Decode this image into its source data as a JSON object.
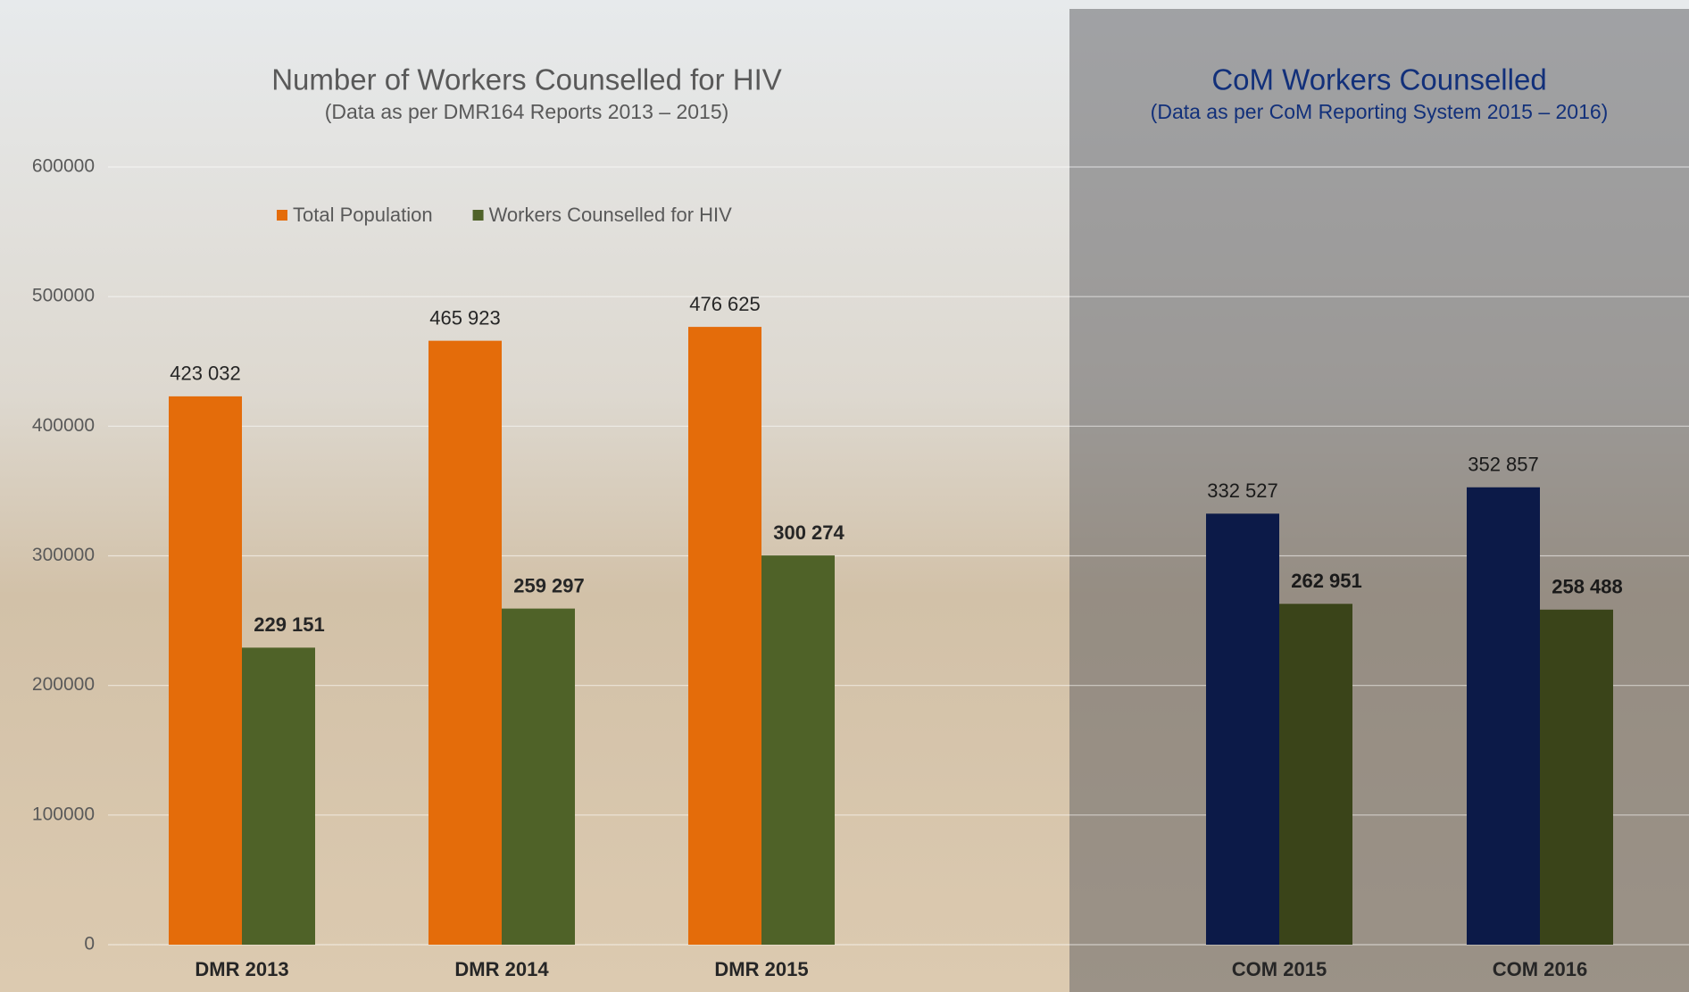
{
  "chart_data": [
    {
      "type": "bar",
      "title": "Number of Workers Counselled  for HIV",
      "subtitle": "(Data as per DMR164  Reports 2013 – 2015)",
      "categories": [
        "DMR 2013",
        "DMR 2014",
        "DMR 2015"
      ],
      "series": [
        {
          "name": "Total Population",
          "color": "#e46c0a",
          "values": [
            423032,
            465923,
            476625
          ],
          "value_labels": [
            "423 032",
            "465 923",
            "476 625"
          ]
        },
        {
          "name": "Workers Counselled for HIV",
          "color": "#4f6228",
          "values": [
            229151,
            259297,
            300274
          ],
          "value_labels": [
            "229 151",
            "259 297",
            "300 274"
          ]
        }
      ],
      "ylim": [
        0,
        600000
      ],
      "yticks": [
        0,
        100000,
        200000,
        300000,
        400000,
        500000,
        600000
      ],
      "grid": true,
      "legend": "top"
    },
    {
      "type": "bar",
      "title": "CoM Workers Counselled",
      "subtitle": "(Data as per CoM Reporting System 2015 – 2016)",
      "categories": [
        "COM 2015",
        "COM 2016"
      ],
      "series": [
        {
          "color": "#0c1a48",
          "values": [
            332527,
            352857
          ],
          "value_labels": [
            "332 527",
            "352 857"
          ]
        },
        {
          "color": "#3a4419",
          "values": [
            262951,
            258488
          ],
          "value_labels": [
            "262 951",
            "258 488"
          ]
        }
      ],
      "ylim": [
        0,
        600000
      ]
    }
  ]
}
